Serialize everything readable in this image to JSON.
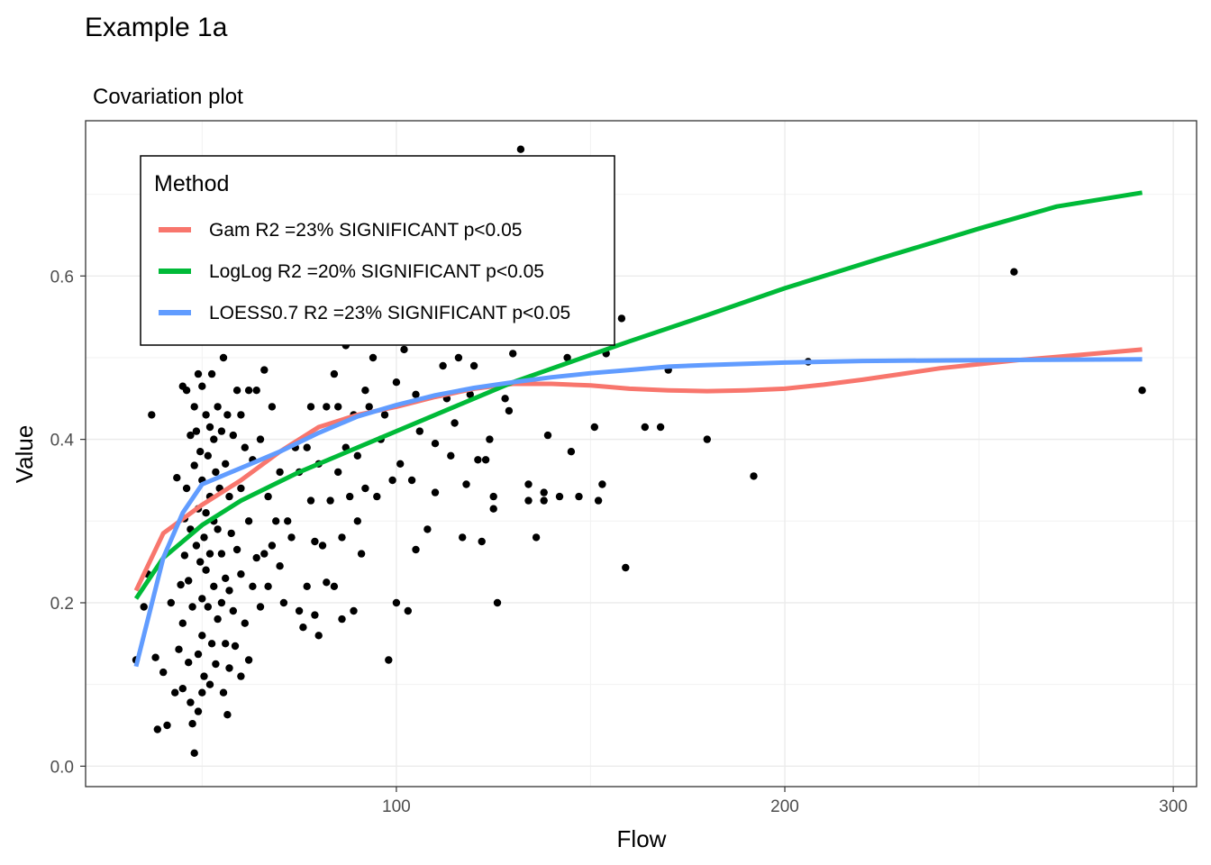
{
  "title": "Example 1a",
  "subtitle": "Covariation plot",
  "chart_data": {
    "type": "scatter",
    "xlabel": "Flow",
    "ylabel": "Value",
    "xlim": [
      20,
      306
    ],
    "ylim": [
      -0.025,
      0.79
    ],
    "x_ticks": [
      100,
      200,
      300
    ],
    "y_ticks": [
      0.0,
      0.2,
      0.4,
      0.6
    ],
    "x_tick_labels": [
      "100",
      "200",
      "300"
    ],
    "y_tick_labels": [
      "0.0",
      "0.2",
      "0.4",
      "0.6"
    ],
    "grid": true,
    "point_color": "#000000",
    "legend": {
      "title": "Method",
      "position": "top-left"
    },
    "series": [
      {
        "name": "Gam R2 =23% SIGNIFICANT p<0.05",
        "color": "#F8766D",
        "x": [
          33,
          40,
          50,
          60,
          70,
          80,
          90,
          100,
          110,
          120,
          130,
          140,
          150,
          160,
          170,
          180,
          190,
          200,
          210,
          220,
          230,
          240,
          250,
          260,
          270,
          280,
          292
        ],
        "y": [
          0.215,
          0.285,
          0.32,
          0.35,
          0.385,
          0.415,
          0.43,
          0.44,
          0.452,
          0.462,
          0.468,
          0.468,
          0.466,
          0.462,
          0.46,
          0.459,
          0.46,
          0.462,
          0.467,
          0.473,
          0.48,
          0.487,
          0.492,
          0.497,
          0.501,
          0.505,
          0.51
        ]
      },
      {
        "name": "LogLog R2 =20% SIGNIFICANT p<0.05",
        "color": "#00BA38",
        "x": [
          33,
          40,
          50,
          60,
          75,
          90,
          100,
          110,
          120,
          130,
          145,
          160,
          180,
          200,
          225,
          250,
          270,
          292
        ],
        "y": [
          0.205,
          0.255,
          0.295,
          0.325,
          0.36,
          0.39,
          0.41,
          0.43,
          0.45,
          0.47,
          0.495,
          0.52,
          0.552,
          0.585,
          0.622,
          0.658,
          0.685,
          0.702
        ]
      },
      {
        "name": "LOESS0.7 R2 =23% SIGNIFICANT p<0.05",
        "color": "#619CFF",
        "x": [
          33,
          40,
          45,
          50,
          55,
          60,
          70,
          80,
          90,
          100,
          110,
          120,
          130,
          140,
          150,
          160,
          170,
          180,
          200,
          220,
          250,
          292
        ],
        "y": [
          0.122,
          0.255,
          0.31,
          0.345,
          0.355,
          0.365,
          0.385,
          0.408,
          0.428,
          0.442,
          0.454,
          0.463,
          0.47,
          0.476,
          0.481,
          0.485,
          0.489,
          0.491,
          0.494,
          0.496,
          0.497,
          0.498
        ]
      }
    ],
    "points": [
      [
        33,
        0.13
      ],
      [
        35,
        0.195
      ],
      [
        36,
        0.235
      ],
      [
        37,
        0.43
      ],
      [
        38,
        0.133
      ],
      [
        38.5,
        0.045
      ],
      [
        40,
        0.115
      ],
      [
        41,
        0.05
      ],
      [
        42,
        0.2
      ],
      [
        43,
        0.09
      ],
      [
        43.5,
        0.353
      ],
      [
        44,
        0.143
      ],
      [
        44.5,
        0.222
      ],
      [
        45,
        0.095
      ],
      [
        45,
        0.175
      ],
      [
        45,
        0.465
      ],
      [
        45.5,
        0.258
      ],
      [
        45.5,
        0.303
      ],
      [
        46,
        0.34
      ],
      [
        46,
        0.46
      ],
      [
        46.5,
        0.127
      ],
      [
        46.5,
        0.227
      ],
      [
        47,
        0.078
      ],
      [
        47,
        0.29
      ],
      [
        47,
        0.405
      ],
      [
        47.5,
        0.052
      ],
      [
        47.5,
        0.195
      ],
      [
        48,
        0.016
      ],
      [
        48,
        0.368
      ],
      [
        48,
        0.44
      ],
      [
        48.5,
        0.27
      ],
      [
        48.5,
        0.41
      ],
      [
        49,
        0.067
      ],
      [
        49,
        0.137
      ],
      [
        49,
        0.315
      ],
      [
        49,
        0.48
      ],
      [
        49.5,
        0.25
      ],
      [
        49.5,
        0.385
      ],
      [
        50,
        0.09
      ],
      [
        50,
        0.16
      ],
      [
        50,
        0.205
      ],
      [
        50,
        0.35
      ],
      [
        50,
        0.465
      ],
      [
        50.5,
        0.11
      ],
      [
        50.5,
        0.28
      ],
      [
        51,
        0.24
      ],
      [
        51,
        0.31
      ],
      [
        51,
        0.43
      ],
      [
        51.5,
        0.195
      ],
      [
        51.5,
        0.38
      ],
      [
        52,
        0.1
      ],
      [
        52,
        0.26
      ],
      [
        52,
        0.33
      ],
      [
        52,
        0.415
      ],
      [
        52.5,
        0.15
      ],
      [
        52.5,
        0.48
      ],
      [
        53,
        0.22
      ],
      [
        53,
        0.3
      ],
      [
        53,
        0.4
      ],
      [
        53.5,
        0.125
      ],
      [
        53.5,
        0.36
      ],
      [
        54,
        0.18
      ],
      [
        54,
        0.29
      ],
      [
        54,
        0.44
      ],
      [
        54.5,
        0.34
      ],
      [
        55,
        0.2
      ],
      [
        55,
        0.26
      ],
      [
        55,
        0.41
      ],
      [
        55.5,
        0.09
      ],
      [
        55.5,
        0.5
      ],
      [
        56,
        0.15
      ],
      [
        56,
        0.23
      ],
      [
        56,
        0.37
      ],
      [
        56.5,
        0.063
      ],
      [
        56.5,
        0.43
      ],
      [
        57,
        0.12
      ],
      [
        57,
        0.215
      ],
      [
        57,
        0.33
      ],
      [
        57.5,
        0.285
      ],
      [
        58,
        0.19
      ],
      [
        58,
        0.405
      ],
      [
        58,
        0.52
      ],
      [
        58.5,
        0.147
      ],
      [
        59,
        0.265
      ],
      [
        59,
        0.46
      ],
      [
        60,
        0.11
      ],
      [
        60,
        0.235
      ],
      [
        60,
        0.34
      ],
      [
        60,
        0.43
      ],
      [
        61,
        0.175
      ],
      [
        61,
        0.39
      ],
      [
        62,
        0.13
      ],
      [
        62,
        0.3
      ],
      [
        62,
        0.46
      ],
      [
        63,
        0.22
      ],
      [
        63,
        0.375
      ],
      [
        64,
        0.255
      ],
      [
        64,
        0.46
      ],
      [
        65,
        0.195
      ],
      [
        65,
        0.4
      ],
      [
        66,
        0.26
      ],
      [
        66,
        0.485
      ],
      [
        67,
        0.33
      ],
      [
        67,
        0.22
      ],
      [
        68,
        0.27
      ],
      [
        68,
        0.44
      ],
      [
        69,
        0.3
      ],
      [
        70,
        0.245
      ],
      [
        70,
        0.36
      ],
      [
        71,
        0.2
      ],
      [
        72,
        0.3
      ],
      [
        73,
        0.28
      ],
      [
        74,
        0.39
      ],
      [
        75,
        0.19
      ],
      [
        75,
        0.36
      ],
      [
        76,
        0.17
      ],
      [
        77,
        0.22
      ],
      [
        77,
        0.39
      ],
      [
        78,
        0.325
      ],
      [
        78,
        0.44
      ],
      [
        79,
        0.185
      ],
      [
        79,
        0.275
      ],
      [
        80,
        0.16
      ],
      [
        80,
        0.37
      ],
      [
        81,
        0.27
      ],
      [
        82,
        0.44
      ],
      [
        82,
        0.225
      ],
      [
        83,
        0.325
      ],
      [
        84,
        0.48
      ],
      [
        84,
        0.22
      ],
      [
        85,
        0.36
      ],
      [
        85,
        0.44
      ],
      [
        86,
        0.18
      ],
      [
        86,
        0.28
      ],
      [
        87,
        0.39
      ],
      [
        87,
        0.515
      ],
      [
        88,
        0.33
      ],
      [
        89,
        0.19
      ],
      [
        89,
        0.43
      ],
      [
        90,
        0.3
      ],
      [
        90,
        0.38
      ],
      [
        91,
        0.26
      ],
      [
        92,
        0.46
      ],
      [
        92,
        0.34
      ],
      [
        93,
        0.44
      ],
      [
        94,
        0.5
      ],
      [
        95,
        0.33
      ],
      [
        96,
        0.4
      ],
      [
        97,
        0.43
      ],
      [
        98,
        0.13
      ],
      [
        99,
        0.35
      ],
      [
        100,
        0.47
      ],
      [
        100,
        0.2
      ],
      [
        101,
        0.37
      ],
      [
        102,
        0.51
      ],
      [
        103,
        0.19
      ],
      [
        104,
        0.35
      ],
      [
        105,
        0.265
      ],
      [
        105,
        0.455
      ],
      [
        106,
        0.41
      ],
      [
        108,
        0.29
      ],
      [
        110,
        0.395
      ],
      [
        110,
        0.335
      ],
      [
        112,
        0.49
      ],
      [
        113,
        0.45
      ],
      [
        114,
        0.38
      ],
      [
        115,
        0.42
      ],
      [
        116,
        0.5
      ],
      [
        117,
        0.28
      ],
      [
        118,
        0.345
      ],
      [
        119,
        0.455
      ],
      [
        120,
        0.49
      ],
      [
        121,
        0.375
      ],
      [
        122,
        0.275
      ],
      [
        123,
        0.375
      ],
      [
        124,
        0.4
      ],
      [
        125,
        0.33
      ],
      [
        125,
        0.315
      ],
      [
        126,
        0.2
      ],
      [
        128,
        0.45
      ],
      [
        129,
        0.435
      ],
      [
        130,
        0.505
      ],
      [
        132,
        0.755
      ],
      [
        134,
        0.345
      ],
      [
        134,
        0.325
      ],
      [
        136,
        0.28
      ],
      [
        138,
        0.335
      ],
      [
        138,
        0.325
      ],
      [
        139,
        0.405
      ],
      [
        142,
        0.33
      ],
      [
        144,
        0.5
      ],
      [
        145,
        0.385
      ],
      [
        147,
        0.33
      ],
      [
        151,
        0.415
      ],
      [
        152,
        0.325
      ],
      [
        153,
        0.345
      ],
      [
        154,
        0.505
      ],
      [
        158,
        0.548
      ],
      [
        159,
        0.243
      ],
      [
        164,
        0.415
      ],
      [
        168,
        0.415
      ],
      [
        170,
        0.485
      ],
      [
        180,
        0.4
      ],
      [
        192,
        0.355
      ],
      [
        206,
        0.495
      ],
      [
        259,
        0.605
      ],
      [
        292,
        0.46
      ]
    ]
  }
}
